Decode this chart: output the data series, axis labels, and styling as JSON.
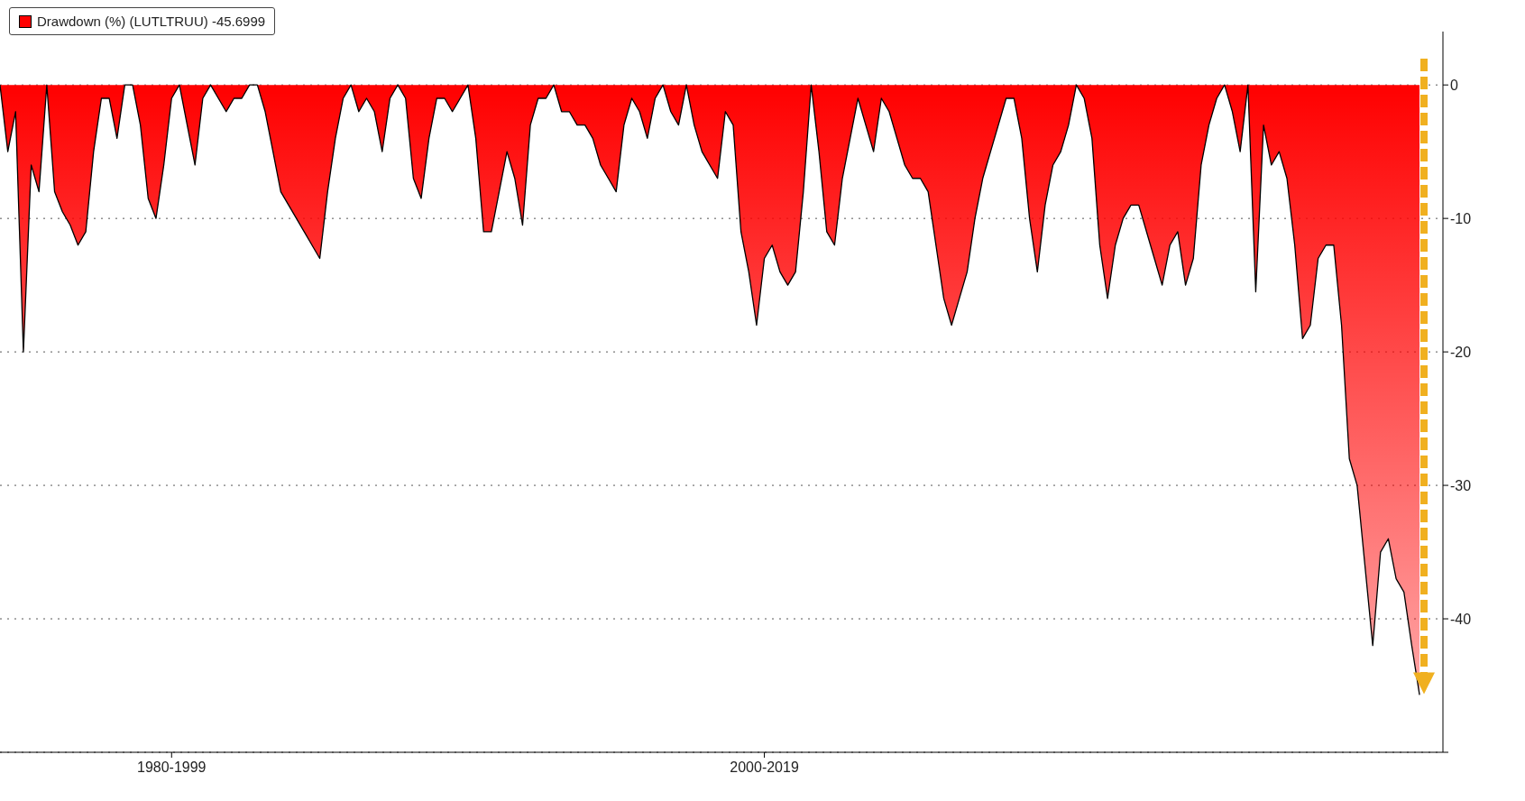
{
  "chart_data": {
    "type": "area",
    "legend": "top left",
    "grid": "y",
    "line_style": "solid",
    "categories": [
      null,
      null,
      null,
      null,
      null,
      null,
      null,
      null,
      null,
      null,
      null,
      null,
      null,
      null,
      null,
      null,
      null,
      null,
      null,
      null,
      null,
      null,
      "1980-1999",
      null,
      null,
      null,
      null,
      null,
      null,
      null,
      null,
      null,
      null,
      null,
      null,
      null,
      null,
      null,
      null,
      null,
      null,
      null,
      null,
      null,
      null,
      null,
      null,
      null,
      null,
      null,
      null,
      null,
      null,
      null,
      null,
      null,
      null,
      null,
      null,
      null,
      null,
      null,
      null,
      null,
      null,
      null,
      null,
      null,
      null,
      null,
      null,
      null,
      null,
      null,
      null,
      null,
      null,
      null,
      null,
      null,
      null,
      null,
      null,
      null,
      null,
      null,
      null,
      null,
      null,
      null,
      null,
      null,
      null,
      null,
      null,
      null,
      null,
      null,
      "2000-2019",
      null,
      null,
      null,
      null,
      null,
      null,
      null,
      null,
      null,
      null,
      null,
      null,
      null,
      null,
      null,
      null,
      null,
      null,
      null,
      null,
      null,
      null,
      null,
      null,
      null,
      null,
      null,
      null,
      null,
      null,
      null,
      null,
      null,
      null,
      null,
      null,
      null,
      null,
      null,
      null,
      null,
      null,
      null,
      null,
      null,
      null,
      null,
      null,
      null,
      null,
      null,
      null,
      null,
      null,
      null,
      null,
      null,
      null,
      null,
      null,
      null,
      null,
      null,
      null,
      null,
      null,
      null,
      null,
      null,
      null,
      null,
      null,
      null,
      null,
      null,
      null,
      null,
      null,
      null,
      null,
      null,
      null,
      null,
      null,
      null,
      null,
      null
    ],
    "series": [
      {
        "name": "Drawdown (%) (LUTLTRUU) -45.6999",
        "color": "#ff0000",
        "values": [
          0,
          -5,
          -2,
          -20,
          -6,
          -8,
          0,
          -8,
          -9.5,
          -10.5,
          -12,
          -11,
          -5,
          -1,
          -1,
          -4,
          0,
          0,
          -3,
          -8.5,
          -10,
          -6,
          -1,
          0,
          -3,
          -6,
          -1,
          0,
          -1,
          -2,
          -1,
          -1,
          0,
          0,
          -2,
          -5,
          -8,
          -9,
          -10,
          -11,
          -12,
          -13,
          -8,
          -4,
          -1,
          0,
          -2,
          -1,
          -2,
          -5,
          -1,
          0,
          -1,
          -7,
          -8.5,
          -4,
          -1,
          -1,
          -2,
          -1,
          0,
          -4,
          -11,
          -11,
          -8,
          -5,
          -7,
          -10.5,
          -3,
          -1,
          -1,
          0,
          -2,
          -2,
          -3,
          -3,
          -4,
          -6,
          -7,
          -8,
          -3,
          -1,
          -2,
          -4,
          -1,
          0,
          -2,
          -3,
          0,
          -3,
          -5,
          -6,
          -7,
          -2,
          -3,
          -11,
          -14,
          -18,
          -13,
          -12,
          -14,
          -15,
          -14,
          -8,
          0,
          -5,
          -11,
          -12,
          -7,
          -4,
          -1,
          -3,
          -5,
          -1,
          -2,
          -4,
          -6,
          -7,
          -7,
          -8,
          -12,
          -16,
          -18,
          -16,
          -14,
          -10,
          -7,
          -5,
          -3,
          -1,
          -1,
          -4,
          -10,
          -14,
          -9,
          -6,
          -5,
          -3,
          0,
          -1,
          -4,
          -12,
          -16,
          -12,
          -10,
          -9,
          -9,
          -11,
          -13,
          -15,
          -12,
          -11,
          -15,
          -13,
          -6,
          -3,
          -1,
          0,
          -2,
          -5,
          0,
          -15.5,
          -3,
          -6,
          -5,
          -7,
          -12,
          -19,
          -18,
          -13,
          -12,
          -12,
          -18,
          -28,
          -30,
          -36,
          -42,
          -35,
          -34,
          -37,
          -38,
          -42,
          -45.7,
          null,
          null,
          null
        ]
      }
    ],
    "ylim": [
      -50,
      4
    ],
    "yticks": [
      0,
      -10,
      -20,
      -30,
      -40,
      {
        "value": -50,
        "label": null
      }
    ]
  }
}
